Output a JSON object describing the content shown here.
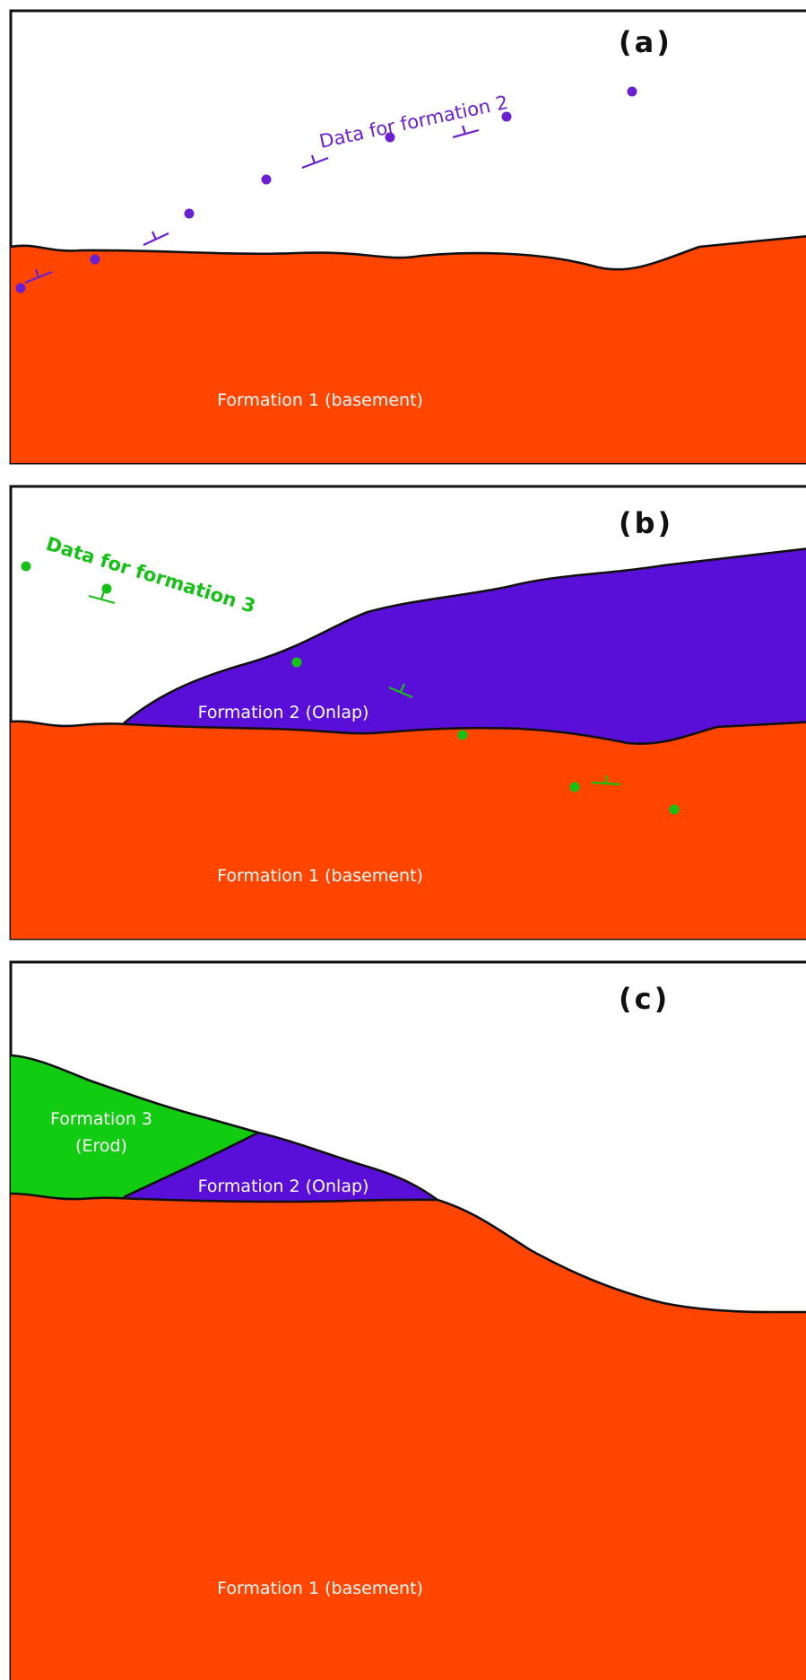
{
  "colors": {
    "formation_1": "#ff4500",
    "formation_2": "#5a0fd8",
    "formation_3": "#11cc11",
    "formation_2_points": "#6a1fd0",
    "formation_3_points": "#16c016",
    "outline": "#111111"
  },
  "panels": [
    {
      "letter": "(a)",
      "formation_1_label": "Formation 1 (basement)",
      "data_label": "Data for formation 2"
    },
    {
      "letter": "(b)",
      "formation_1_label": "Formation 1 (basement)",
      "formation_2_label": "Formation 2 (Onlap)",
      "data_label": "Data for formation 3"
    },
    {
      "letter": "(c)",
      "formation_1_label": "Formation 1 (basement)",
      "formation_2_label": "Formation 2 (Onlap)",
      "formation_3_label_line1": "Formation 3",
      "formation_3_label_line2": "(Erod)"
    }
  ],
  "symbols": {
    "data_point": "filled-circle",
    "orientation_measurement": "strike-dip-symbol"
  }
}
